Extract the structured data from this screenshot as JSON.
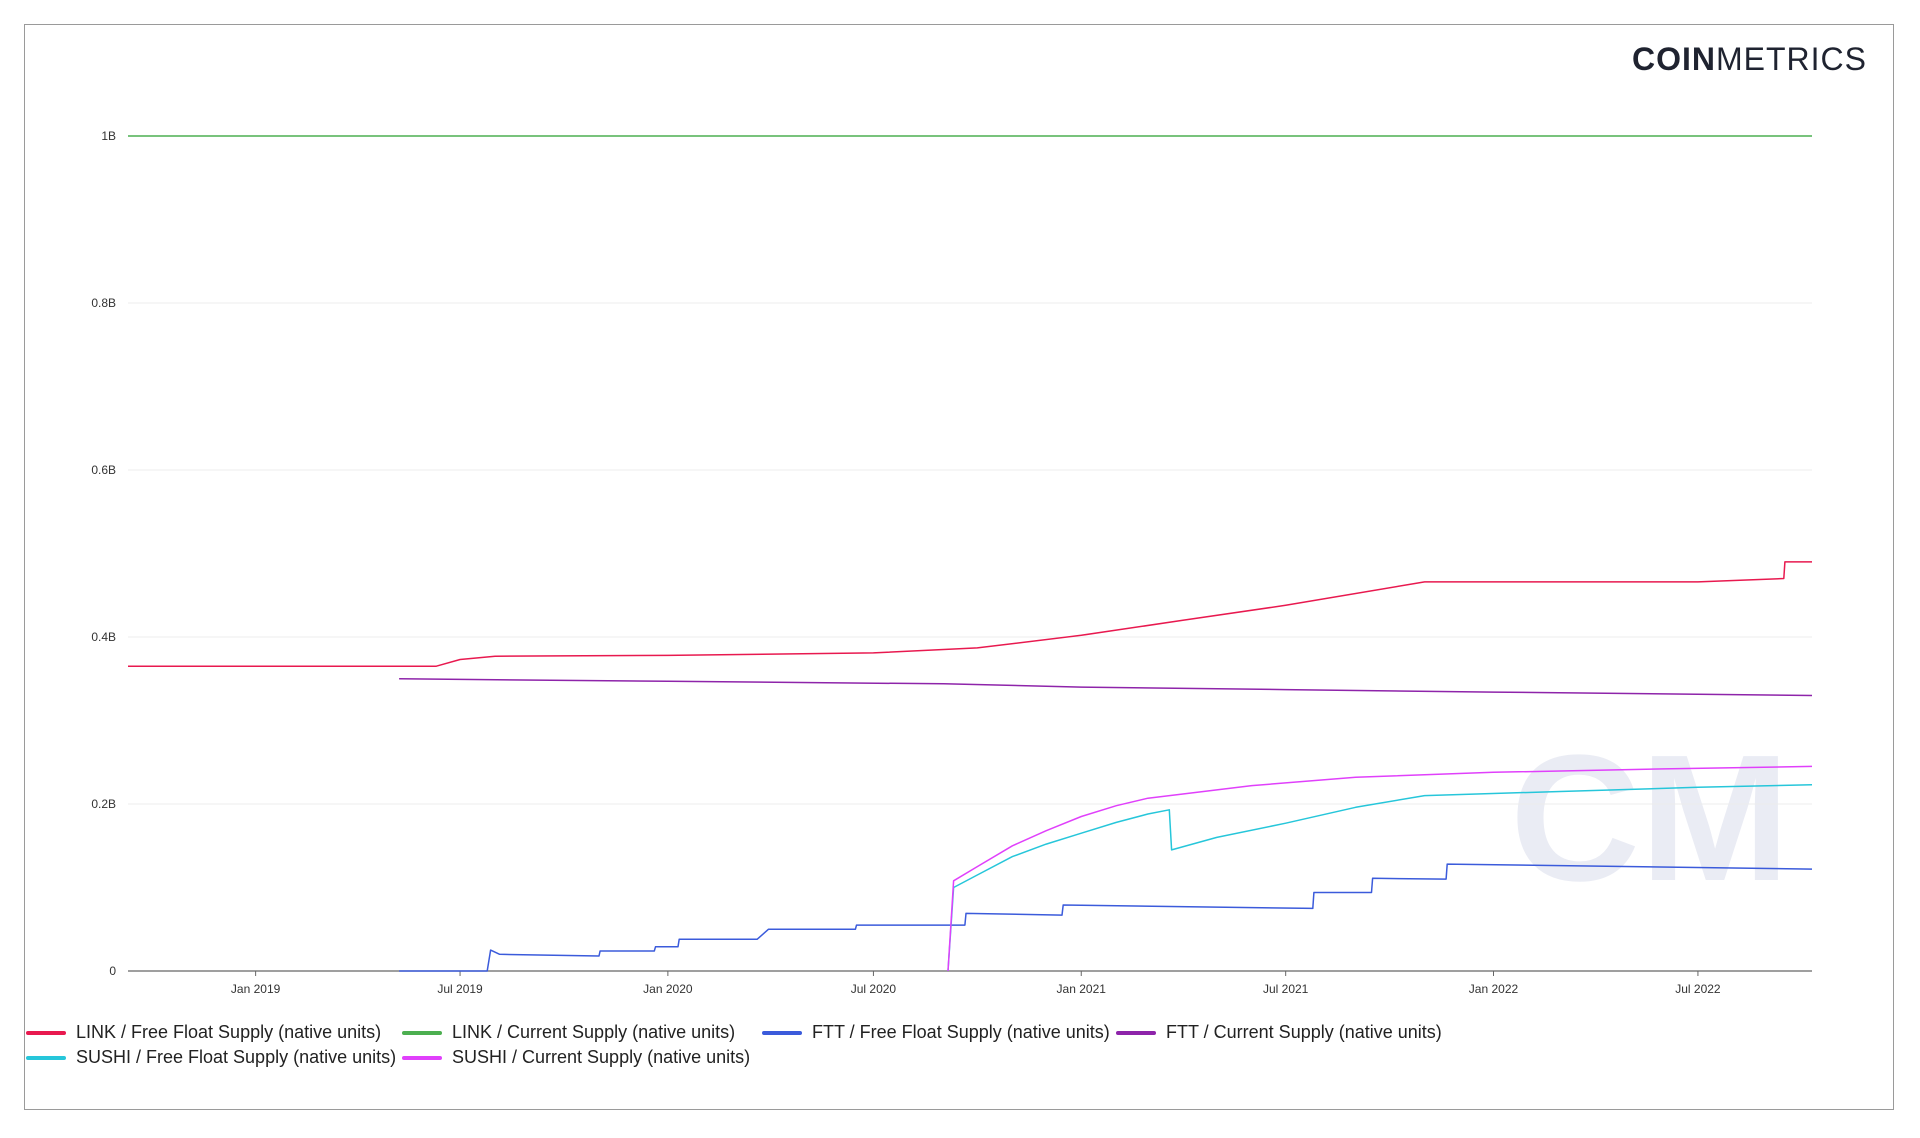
{
  "brand": {
    "bold": "COIN",
    "light": "METRICS"
  },
  "watermark": "CM",
  "chart_data": {
    "type": "line",
    "title": "",
    "xlabel": "",
    "ylabel": "",
    "x_range": [
      "2018-09-10",
      "2022-10-10"
    ],
    "ylim": [
      0,
      1000000000
    ],
    "grid": true,
    "legend_position": "bottom",
    "y_ticks": [
      {
        "value": 0,
        "label": "0"
      },
      {
        "value": 200000000,
        "label": "0.2B"
      },
      {
        "value": 400000000,
        "label": "0.4B"
      },
      {
        "value": 600000000,
        "label": "0.6B"
      },
      {
        "value": 800000000,
        "label": "0.8B"
      },
      {
        "value": 1000000000,
        "label": "1B"
      }
    ],
    "x_ticks": [
      {
        "date": "2019-01-01",
        "label": "Jan 2019"
      },
      {
        "date": "2019-07-01",
        "label": "Jul 2019"
      },
      {
        "date": "2020-01-01",
        "label": "Jan 2020"
      },
      {
        "date": "2020-07-01",
        "label": "Jul 2020"
      },
      {
        "date": "2021-01-01",
        "label": "Jan 2021"
      },
      {
        "date": "2021-07-01",
        "label": "Jul 2021"
      },
      {
        "date": "2022-01-01",
        "label": "Jan 2022"
      },
      {
        "date": "2022-07-01",
        "label": "Jul 2022"
      }
    ],
    "series": [
      {
        "name": "LINK / Free Float Supply (native units)",
        "color": "#e8194f",
        "points": [
          [
            "2018-09-10",
            365000000
          ],
          [
            "2019-06-10",
            365000000
          ],
          [
            "2019-07-01",
            373000000
          ],
          [
            "2019-08-01",
            377000000
          ],
          [
            "2020-01-01",
            378000000
          ],
          [
            "2020-07-01",
            381000000
          ],
          [
            "2020-10-01",
            387000000
          ],
          [
            "2021-01-01",
            402000000
          ],
          [
            "2021-04-01",
            420000000
          ],
          [
            "2021-07-01",
            438000000
          ],
          [
            "2021-11-01",
            466000000
          ],
          [
            "2022-07-01",
            466000000
          ],
          [
            "2022-09-15",
            470000000
          ],
          [
            "2022-09-16",
            490000000
          ],
          [
            "2022-10-10",
            490000000
          ]
        ]
      },
      {
        "name": "LINK / Current Supply (native units)",
        "color": "#4caf50",
        "points": [
          [
            "2018-09-10",
            1000000000
          ],
          [
            "2022-10-10",
            1000000000
          ]
        ]
      },
      {
        "name": "FTT / Free Float Supply (native units)",
        "color": "#3b5bdb",
        "points": [
          [
            "2019-05-08",
            0
          ],
          [
            "2019-07-25",
            0
          ],
          [
            "2019-07-28",
            25000000
          ],
          [
            "2019-08-05",
            20000000
          ],
          [
            "2019-11-01",
            18000000
          ],
          [
            "2019-11-02",
            24000000
          ],
          [
            "2019-12-20",
            24000000
          ],
          [
            "2019-12-21",
            29000000
          ],
          [
            "2020-01-10",
            29000000
          ],
          [
            "2020-01-11",
            38000000
          ],
          [
            "2020-03-20",
            38000000
          ],
          [
            "2020-03-30",
            50000000
          ],
          [
            "2020-06-15",
            50000000
          ],
          [
            "2020-06-16",
            55000000
          ],
          [
            "2020-09-20",
            55000000
          ],
          [
            "2020-09-21",
            69000000
          ],
          [
            "2020-12-15",
            67000000
          ],
          [
            "2020-12-16",
            79000000
          ],
          [
            "2021-07-25",
            75000000
          ],
          [
            "2021-07-26",
            94000000
          ],
          [
            "2021-09-15",
            94000000
          ],
          [
            "2021-09-16",
            111000000
          ],
          [
            "2021-11-20",
            110000000
          ],
          [
            "2021-11-21",
            128000000
          ],
          [
            "2022-10-10",
            122000000
          ]
        ]
      },
      {
        "name": "FTT / Current Supply (native units)",
        "color": "#8e24aa",
        "points": [
          [
            "2019-05-08",
            350000000
          ],
          [
            "2020-01-01",
            347000000
          ],
          [
            "2020-09-01",
            344000000
          ],
          [
            "2021-01-01",
            340000000
          ],
          [
            "2021-07-01",
            337000000
          ],
          [
            "2022-01-01",
            334000000
          ],
          [
            "2022-10-10",
            330000000
          ]
        ]
      },
      {
        "name": "SUSHI / Free Float Supply (native units)",
        "color": "#26c6da",
        "points": [
          [
            "2020-09-05",
            0
          ],
          [
            "2020-09-10",
            100000000
          ],
          [
            "2020-10-01",
            115000000
          ],
          [
            "2020-11-01",
            137000000
          ],
          [
            "2020-12-01",
            152000000
          ],
          [
            "2021-01-01",
            165000000
          ],
          [
            "2021-02-01",
            178000000
          ],
          [
            "2021-03-01",
            188000000
          ],
          [
            "2021-03-20",
            193000000
          ],
          [
            "2021-03-22",
            145000000
          ],
          [
            "2021-05-01",
            160000000
          ],
          [
            "2021-07-01",
            177000000
          ],
          [
            "2021-09-01",
            196000000
          ],
          [
            "2021-11-01",
            210000000
          ],
          [
            "2022-03-01",
            215000000
          ],
          [
            "2022-07-01",
            220000000
          ],
          [
            "2022-10-10",
            223000000
          ]
        ]
      },
      {
        "name": "SUSHI / Current Supply (native units)",
        "color": "#e040fb",
        "points": [
          [
            "2020-09-05",
            0
          ],
          [
            "2020-09-10",
            108000000
          ],
          [
            "2020-10-01",
            125000000
          ],
          [
            "2020-11-01",
            150000000
          ],
          [
            "2020-12-01",
            168000000
          ],
          [
            "2021-01-01",
            185000000
          ],
          [
            "2021-02-01",
            198000000
          ],
          [
            "2021-03-01",
            207000000
          ],
          [
            "2021-04-01",
            212000000
          ],
          [
            "2021-06-01",
            222000000
          ],
          [
            "2021-09-01",
            232000000
          ],
          [
            "2022-01-01",
            238000000
          ],
          [
            "2022-06-01",
            242000000
          ],
          [
            "2022-10-10",
            245000000
          ]
        ]
      }
    ]
  }
}
